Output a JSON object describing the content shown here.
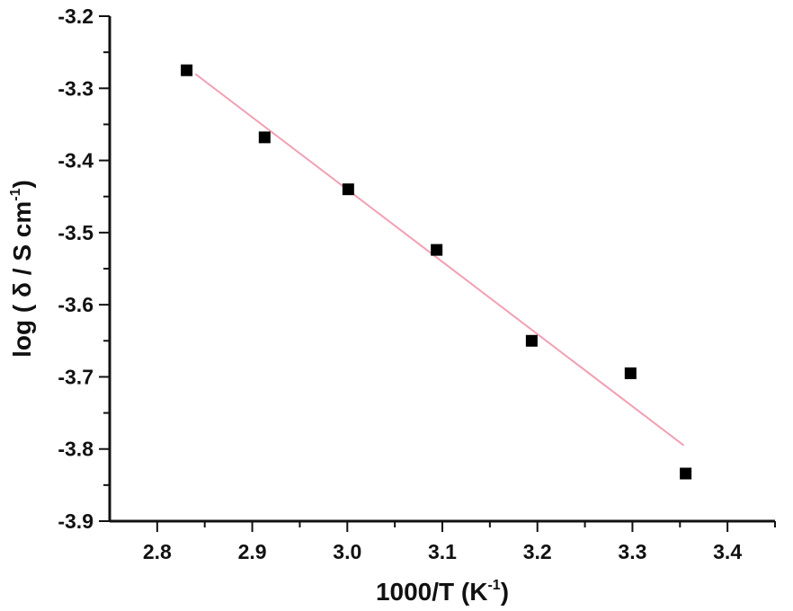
{
  "chart_data": {
    "type": "scatter",
    "title": "",
    "xlabel": "1000/T (K",
    "xlabel_sup": "-1",
    "xlabel_tail": ")",
    "ylabel": "log ( δ / S cm",
    "ylabel_sup": "-1",
    "ylabel_tail": ")",
    "xlim": [
      2.75,
      3.45
    ],
    "ylim": [
      -3.9,
      -3.2
    ],
    "xticks": [
      2.8,
      2.9,
      3.0,
      3.1,
      3.2,
      3.3,
      3.4
    ],
    "xtick_labels": [
      "2.8",
      "2.9",
      "3.0",
      "3.1",
      "3.2",
      "3.3",
      "3.4"
    ],
    "yticks": [
      -3.2,
      -3.3,
      -3.4,
      -3.5,
      -3.6,
      -3.7,
      -3.8,
      -3.9
    ],
    "ytick_labels": [
      "-3.2",
      "-3.3",
      "-3.4",
      "-3.5",
      "-3.6",
      "-3.7",
      "-3.8",
      "-3.9"
    ],
    "grid": false,
    "series": [
      {
        "marker": "square",
        "color": "#000000",
        "x": [
          2.831,
          2.913,
          3.001,
          3.094,
          3.194,
          3.298,
          3.356
        ],
        "y": [
          -3.275,
          -3.368,
          -3.44,
          -3.524,
          -3.65,
          -3.695,
          -3.834
        ]
      }
    ],
    "fit_line": {
      "color": "#f2a0b4",
      "x": [
        2.84,
        3.354
      ],
      "y": [
        -3.28,
        -3.795
      ]
    }
  }
}
